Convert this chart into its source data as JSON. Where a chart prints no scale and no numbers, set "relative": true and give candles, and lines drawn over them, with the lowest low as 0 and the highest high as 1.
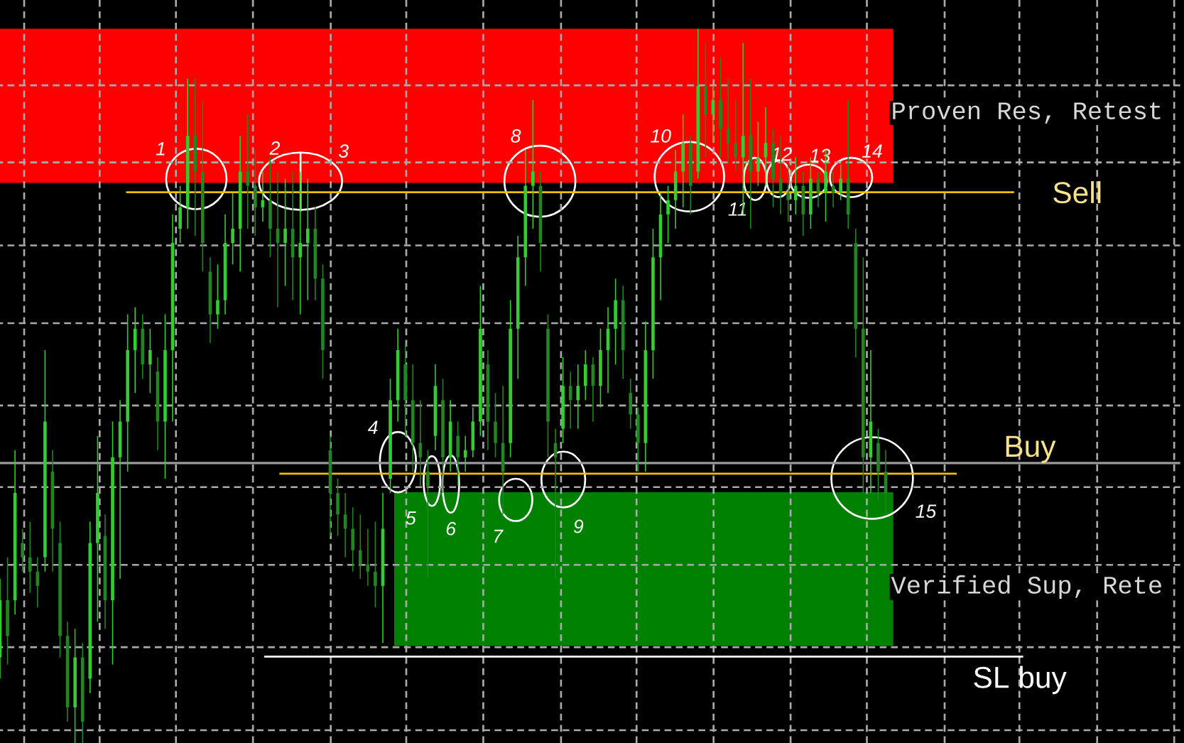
{
  "chart_data": {
    "type": "candlestick",
    "relative": true,
    "grid": true,
    "colors": [
      "#33cc33",
      "#218521",
      "#33cc33",
      "#218521",
      "#218521",
      "#218521",
      "#33cc33",
      "#218521",
      "#218521",
      "#218521",
      "#33cc33",
      "#218521",
      "#33cc33",
      "#33cc33",
      "#218521",
      "#33cc33",
      "#33cc33",
      "#33cc33",
      "#33cc33",
      "#218521",
      "#33cc33",
      "#218521",
      "#33cc33",
      "#33cc33",
      "#33cc33",
      "#33cc33",
      "#218521",
      "#218521",
      "#218521",
      "#33cc33",
      "#33cc33",
      "#33cc33",
      "#33cc33",
      "#218521",
      "#218521",
      "#33cc33",
      "#218521",
      "#218521",
      "#33cc33",
      "#218521",
      "#33cc33",
      "#33cc33",
      "#218521",
      "#218521",
      "#218521",
      "#218521",
      "#218521",
      "#218521",
      "#218521",
      "#218521",
      "#218521",
      "#33cc33",
      "#33cc33",
      "#33cc33",
      "#218521",
      "#218521",
      "#218521",
      "#218521",
      "#33cc33",
      "#218521",
      "#33cc33",
      "#218521",
      "#33cc33",
      "#33cc33",
      "#33cc33",
      "#218521",
      "#218521",
      "#218521",
      "#33cc33",
      "#33cc33",
      "#33cc33",
      "#33cc33",
      "#218521",
      "#218521",
      "#218521",
      "#33cc33",
      "#218521",
      "#33cc33",
      "#33cc33",
      "#218521",
      "#33cc33",
      "#33cc33",
      "#33cc33",
      "#218521",
      "#218521",
      "#218521",
      "#33cc33",
      "#33cc33",
      "#33cc33",
      "#33cc33",
      "#33cc33",
      "#33cc33",
      "#218521",
      "#33cc33",
      "#218521",
      "#33cc33",
      "#218521",
      "#218521",
      "#218521",
      "#33cc33",
      "#218521",
      "#33cc33",
      "#33cc33",
      "#218521",
      "#218521",
      "#218521",
      "#33cc33",
      "#218521",
      "#33cc33",
      "#218521",
      "#33cc33",
      "#218521",
      "#33cc33",
      "#218521",
      "#218521",
      "#218521",
      "#33cc33",
      "#218521",
      "#218521"
    ],
    "categories": [
      null,
      null,
      null,
      null,
      null,
      null,
      null,
      null,
      null,
      null,
      null,
      null,
      null,
      null,
      null,
      null,
      null,
      null,
      null,
      null,
      null,
      null,
      null,
      null,
      null,
      null,
      null,
      null,
      null,
      null,
      null,
      null,
      null,
      null,
      null,
      null,
      null,
      null,
      null,
      null,
      null,
      null,
      null,
      null,
      null,
      null,
      null,
      null,
      null,
      null,
      null,
      null,
      null,
      null,
      null,
      null,
      null,
      null,
      null,
      null,
      null,
      null,
      null,
      null,
      null,
      null,
      null,
      null,
      null,
      null,
      null,
      null,
      null,
      null,
      null,
      null,
      null,
      null,
      null,
      null,
      null,
      null,
      null,
      null,
      null,
      null,
      null,
      null,
      null,
      null,
      null,
      null,
      null,
      null,
      null,
      null,
      null,
      null,
      null,
      null,
      null,
      null,
      null,
      null,
      null,
      null,
      null,
      null,
      null,
      null,
      null,
      null,
      null,
      null,
      null,
      null,
      null,
      null,
      null
    ],
    "ohlc": [
      [
        0.12,
        0.23,
        0.09,
        0.2
      ],
      [
        0.2,
        0.26,
        0.11,
        0.15
      ],
      [
        0.2,
        0.41,
        0.18,
        0.35
      ],
      [
        0.28,
        0.3,
        0.24,
        0.26
      ],
      [
        0.26,
        0.31,
        0.21,
        0.24
      ],
      [
        0.24,
        0.26,
        0.19,
        0.22
      ],
      [
        0.26,
        0.55,
        0.24,
        0.45
      ],
      [
        0.38,
        0.41,
        0.24,
        0.3
      ],
      [
        0.28,
        0.31,
        0.12,
        0.15
      ],
      [
        0.15,
        0.17,
        0.03,
        0.05
      ],
      [
        0.05,
        0.16,
        0,
        0.12
      ],
      [
        0.12,
        0.14,
        0,
        0.03
      ],
      [
        0.09,
        0.31,
        0.07,
        0.28
      ],
      [
        0.28,
        0.43,
        0.17,
        0.35
      ],
      [
        0.29,
        0.32,
        0.16,
        0.2
      ],
      [
        0.2,
        0.45,
        0.11,
        0.4
      ],
      [
        0.4,
        0.48,
        0.23,
        0.45
      ],
      [
        0.45,
        0.6,
        0.38,
        0.55
      ],
      [
        0.55,
        0.61,
        0.49,
        0.58
      ],
      [
        0.58,
        0.6,
        0.51,
        0.53
      ],
      [
        0.53,
        0.58,
        0.49,
        0.55
      ],
      [
        0.52,
        0.54,
        0.41,
        0.45
      ],
      [
        0.45,
        0.6,
        0.37,
        0.55
      ],
      [
        0.55,
        0.74,
        0.45,
        0.7
      ],
      [
        0.72,
        0.78,
        0.7,
        0.75
      ],
      [
        0.75,
        0.93,
        0.72,
        0.85
      ],
      [
        0.85,
        0.93,
        0.71,
        0.8
      ],
      [
        0.8,
        0.9,
        0.66,
        0.7
      ],
      [
        0.66,
        0.68,
        0.56,
        0.6
      ],
      [
        0.6,
        0.67,
        0.58,
        0.62
      ],
      [
        0.62,
        0.74,
        0.6,
        0.7
      ],
      [
        0.7,
        0.77,
        0.67,
        0.72
      ],
      [
        0.72,
        0.85,
        0.66,
        0.8
      ],
      [
        0.8,
        0.88,
        0.72,
        0.78
      ],
      [
        0.78,
        0.83,
        0.71,
        0.75
      ],
      [
        0.75,
        0.8,
        0.73,
        0.76
      ],
      [
        0.76,
        0.82,
        0.68,
        0.72
      ],
      [
        0.72,
        0.8,
        0.61,
        0.7
      ],
      [
        0.7,
        0.79,
        0.64,
        0.72
      ],
      [
        0.72,
        0.8,
        0.62,
        0.68
      ],
      [
        0.68,
        0.8,
        0.6,
        0.7
      ],
      [
        0.7,
        0.79,
        0.62,
        0.72
      ],
      [
        0.72,
        0.75,
        0.62,
        0.65
      ],
      [
        0.65,
        0.67,
        0.51,
        0.55
      ],
      [
        0.41,
        0.43,
        0.29,
        0.35
      ],
      [
        0.35,
        0.37,
        0.29,
        0.32
      ],
      [
        0.32,
        0.35,
        0.26,
        0.3
      ],
      [
        0.3,
        0.33,
        0.24,
        0.27
      ],
      [
        0.27,
        0.32,
        0.23,
        0.25
      ],
      [
        0.25,
        0.3,
        0.22,
        0.24
      ],
      [
        0.24,
        0.31,
        0.19,
        0.22
      ],
      [
        0.22,
        0.35,
        0.14,
        0.3
      ],
      [
        0.37,
        0.51,
        0.35,
        0.48
      ],
      [
        0.48,
        0.58,
        0.45,
        0.55
      ],
      [
        0.53,
        0.56,
        0.43,
        0.48
      ],
      [
        0.48,
        0.53,
        0.38,
        0.42
      ],
      [
        0.42,
        0.48,
        0.36,
        0.4
      ],
      [
        0.38,
        0.41,
        0.23,
        0.36
      ],
      [
        0.43,
        0.53,
        0.41,
        0.5
      ],
      [
        0.48,
        0.51,
        0.35,
        0.4
      ],
      [
        0.4,
        0.48,
        0.38,
        0.45
      ],
      [
        0.43,
        0.45,
        0.36,
        0.4
      ],
      [
        0.4,
        0.43,
        0.38,
        0.41
      ],
      [
        0.41,
        0.47,
        0.4,
        0.45
      ],
      [
        0.45,
        0.64,
        0.43,
        0.58
      ],
      [
        0.53,
        0.55,
        0.41,
        0.45
      ],
      [
        0.45,
        0.49,
        0.4,
        0.42
      ],
      [
        0.42,
        0.5,
        0.32,
        0.38
      ],
      [
        0.42,
        0.62,
        0.4,
        0.58
      ],
      [
        0.58,
        0.71,
        0.51,
        0.68
      ],
      [
        0.68,
        0.83,
        0.64,
        0.78
      ],
      [
        0.78,
        0.9,
        0.72,
        0.8
      ],
      [
        0.78,
        0.8,
        0.66,
        0.7
      ],
      [
        0.58,
        0.6,
        0.4,
        0.45
      ],
      [
        0.42,
        0.44,
        0.23,
        0.4
      ],
      [
        0.44,
        0.54,
        0.42,
        0.5
      ],
      [
        0.5,
        0.52,
        0.44,
        0.48
      ],
      [
        0.48,
        0.53,
        0.44,
        0.5
      ],
      [
        0.5,
        0.55,
        0.48,
        0.53
      ],
      [
        0.53,
        0.54,
        0.45,
        0.5
      ],
      [
        0.5,
        0.58,
        0.47,
        0.55
      ],
      [
        0.55,
        0.61,
        0.49,
        0.58
      ],
      [
        0.58,
        0.65,
        0.53,
        0.62
      ],
      [
        0.62,
        0.64,
        0.51,
        0.55
      ],
      [
        0.49,
        0.51,
        0.44,
        0.46
      ],
      [
        0.46,
        0.47,
        0.38,
        0.42
      ],
      [
        0.42,
        0.59,
        0.38,
        0.55
      ],
      [
        0.55,
        0.72,
        0.51,
        0.68
      ],
      [
        0.68,
        0.77,
        0.62,
        0.74
      ],
      [
        0.74,
        0.78,
        0.7,
        0.76
      ],
      [
        0.76,
        0.83,
        0.72,
        0.8
      ],
      [
        0.8,
        0.88,
        0.75,
        0.84
      ],
      [
        0.84,
        0.85,
        0.74,
        0.78
      ],
      [
        0.8,
        1.0,
        0.79,
        0.92
      ],
      [
        0.92,
        0.98,
        0.82,
        0.88
      ],
      [
        0.88,
        0.92,
        0.84,
        0.9
      ],
      [
        0.9,
        0.96,
        0.82,
        0.86
      ],
      [
        0.86,
        0.93,
        0.81,
        0.84
      ],
      [
        0.84,
        0.9,
        0.8,
        0.82
      ],
      [
        0.82,
        0.98,
        0.74,
        0.85
      ],
      [
        0.85,
        0.93,
        0.72,
        0.8
      ],
      [
        0.8,
        0.87,
        0.78,
        0.82
      ],
      [
        0.82,
        0.89,
        0.78,
        0.84
      ],
      [
        0.84,
        0.86,
        0.75,
        0.79
      ],
      [
        0.79,
        0.85,
        0.74,
        0.77
      ],
      [
        0.77,
        0.81,
        0.73,
        0.76
      ],
      [
        0.76,
        0.82,
        0.74,
        0.78
      ],
      [
        0.78,
        0.8,
        0.71,
        0.74
      ],
      [
        0.74,
        0.82,
        0.72,
        0.79
      ],
      [
        0.79,
        0.8,
        0.75,
        0.77
      ],
      [
        0.77,
        0.83,
        0.73,
        0.8
      ],
      [
        0.78,
        0.8,
        0.75,
        0.77
      ],
      [
        0.77,
        0.81,
        0.76,
        0.79
      ],
      [
        0.79,
        0.9,
        0.72,
        0.74
      ],
      [
        0.7,
        0.72,
        0.54,
        0.58
      ],
      [
        0.58,
        0.68,
        0.35,
        0.4
      ],
      [
        0.4,
        0.55,
        0.35,
        0.45
      ],
      [
        0.42,
        0.44,
        0.34,
        0.38
      ],
      [
        0.38,
        0.41,
        0.32,
        0.35
      ]
    ],
    "bands": [
      {
        "axis": "y",
        "from": 0.784,
        "to": 1,
        "label": "Proven Res, Retest",
        "color": "#ff0000"
      },
      {
        "axis": "y",
        "from": 0.136,
        "to": 0.351,
        "label": "Verified Sup, Rete",
        "color": "#008000"
      }
    ],
    "ref_lines": [
      {
        "axis": "y",
        "value": 0.771,
        "label": "Sell",
        "color": "#f0c000"
      },
      {
        "axis": "y",
        "value": 0.392,
        "color": "#9a9a9a"
      },
      {
        "axis": "y",
        "value": 0.377,
        "label": "Buy",
        "color": "#f0c000"
      },
      {
        "axis": "y",
        "value": 0.121,
        "label": "SL buy",
        "color": "#ffffff"
      }
    ],
    "annotations": [
      "1",
      "2",
      "3",
      "4",
      "5",
      "6",
      "7",
      "8",
      "9",
      "10",
      "11",
      "12",
      "13",
      "14",
      "15"
    ]
  }
}
